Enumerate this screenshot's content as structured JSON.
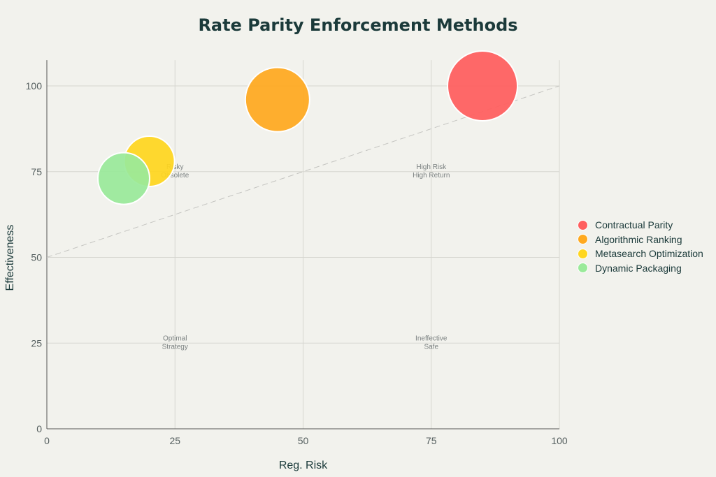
{
  "chart_data": {
    "type": "scatter",
    "title": "Rate Parity Enforcement Methods",
    "xlabel": "Reg. Risk",
    "ylabel": "Effectiveness",
    "xlim": [
      0,
      100
    ],
    "ylim": [
      0,
      107.5
    ],
    "xticks": [
      0,
      25,
      50,
      75,
      100
    ],
    "yticks": [
      0,
      25,
      50,
      75,
      100
    ],
    "grid": true,
    "legend_position": "right",
    "series": [
      {
        "name": "Contractual Parity",
        "x": 85,
        "y": 100,
        "size": 50,
        "color": "#ff5e5e"
      },
      {
        "name": "Algorithmic Ranking",
        "x": 45,
        "y": 96,
        "size": 46,
        "color": "#ffa91f"
      },
      {
        "name": "Metasearch Optimization",
        "x": 20,
        "y": 78,
        "size": 36,
        "color": "#ffd61f"
      },
      {
        "name": "Dynamic Packaging",
        "x": 15,
        "y": 73,
        "size": 37,
        "color": "#9aea9a"
      }
    ],
    "reference_line": {
      "style": "dashed",
      "from": [
        0,
        50
      ],
      "to": [
        100,
        100
      ]
    },
    "annotations": [
      {
        "x": 25,
        "y": 75,
        "lines": [
          "Risky",
          "Obsolete"
        ]
      },
      {
        "x": 75,
        "y": 75,
        "lines": [
          "High Risk",
          "High Return"
        ]
      },
      {
        "x": 25,
        "y": 25,
        "lines": [
          "Optimal",
          "Strategy"
        ]
      },
      {
        "x": 75,
        "y": 25,
        "lines": [
          "Ineffective",
          "Safe"
        ]
      }
    ]
  }
}
